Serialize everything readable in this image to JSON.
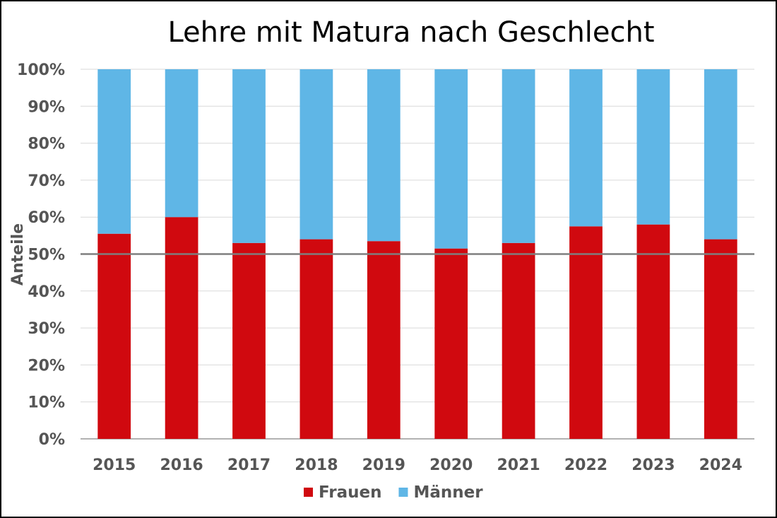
{
  "chart_data": {
    "type": "bar",
    "stacked": true,
    "title": "Lehre mit Matura nach Geschlecht",
    "ylabel": "Anteile",
    "xlabel": "",
    "categories": [
      "2015",
      "2016",
      "2017",
      "2018",
      "2019",
      "2020",
      "2021",
      "2022",
      "2023",
      "2024"
    ],
    "series": [
      {
        "name": "Frauen",
        "color": "#d0090f",
        "values": [
          55.5,
          60,
          53,
          54,
          53.5,
          51.5,
          53,
          57.5,
          58,
          54
        ]
      },
      {
        "name": "Männer",
        "color": "#5fb6e6",
        "values": [
          44.5,
          40,
          47,
          46,
          46.5,
          48.5,
          47,
          42.5,
          42,
          46
        ]
      }
    ],
    "ylim": [
      0,
      100
    ],
    "yticks": [
      "0%",
      "10%",
      "20%",
      "30%",
      "40%",
      "50%",
      "60%",
      "70%",
      "80%",
      "90%",
      "100%"
    ],
    "reference_line": 50,
    "grid": true,
    "legend_position": "bottom"
  }
}
